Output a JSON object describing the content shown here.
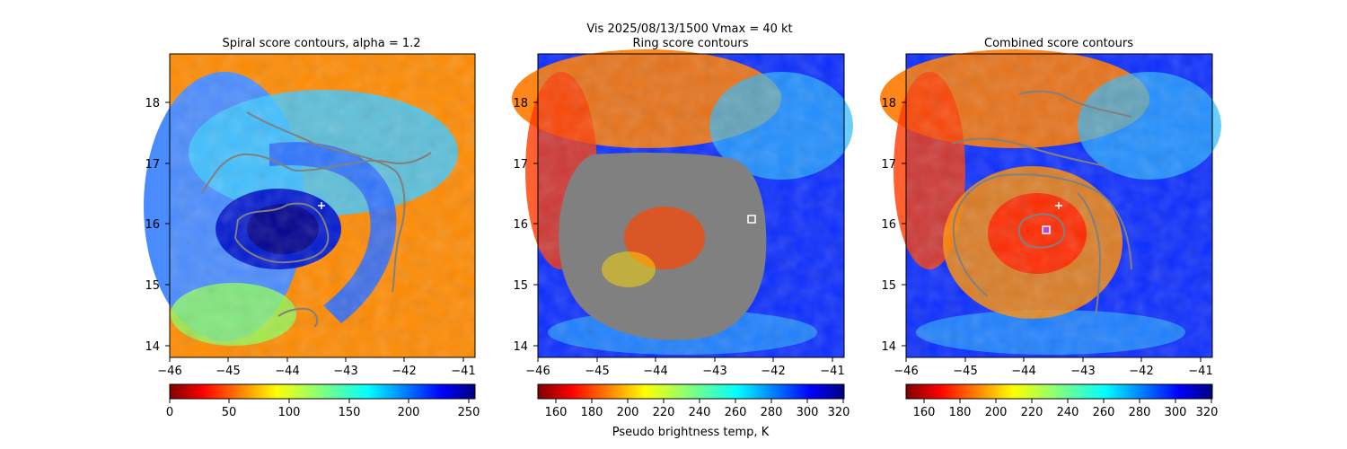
{
  "suptitle": "Vis  2025/08/13/1500    Vmax = 40 kt",
  "chart_data": [
    {
      "type": "heatmap",
      "title": "Spiral score contours, alpha =  1.2",
      "x_ticks": [
        "−46",
        "−45",
        "−44",
        "−43",
        "−42",
        "−41"
      ],
      "y_ticks": [
        "14",
        "15",
        "16",
        "17",
        "18"
      ],
      "xlim": [
        -46,
        -40.8
      ],
      "ylim": [
        13.8,
        18.8
      ],
      "colormap": "jet_r",
      "colorbar": {
        "ticks": [
          "0",
          "50",
          "100",
          "150",
          "200",
          "250"
        ],
        "range": [
          0,
          255
        ],
        "label": ""
      },
      "marker": {
        "type": "plus",
        "x": -43.4,
        "y": 16.3,
        "color": "#ffffff"
      },
      "contour_color": "#808080"
    },
    {
      "type": "heatmap",
      "title": "Ring score contours",
      "x_ticks": [
        "−46",
        "−45",
        "−44",
        "−43",
        "−42",
        "−41"
      ],
      "y_ticks": [
        "14",
        "15",
        "16",
        "17",
        "18"
      ],
      "xlim": [
        -46,
        -40.8
      ],
      "ylim": [
        13.8,
        18.8
      ],
      "colormap": "jet_r",
      "colorbar": {
        "ticks": [
          "160",
          "180",
          "200",
          "220",
          "240",
          "260",
          "280",
          "300",
          "320"
        ],
        "range": [
          150,
          320
        ],
        "label": "Pseudo brightness temp, K"
      },
      "marker": {
        "type": "square",
        "x": -42.35,
        "y": 16.08,
        "color": "#ffffff"
      },
      "mask_color": "#808080"
    },
    {
      "type": "heatmap",
      "title": "Combined score contours",
      "x_ticks": [
        "−46",
        "−45",
        "−44",
        "−43",
        "−42",
        "−41"
      ],
      "y_ticks": [
        "14",
        "15",
        "16",
        "17",
        "18"
      ],
      "xlim": [
        -46,
        -40.8
      ],
      "ylim": [
        13.8,
        18.8
      ],
      "colormap": "jet_r",
      "colorbar": {
        "ticks": [
          "160",
          "180",
          "200",
          "220",
          "240",
          "260",
          "280",
          "300",
          "320"
        ],
        "range": [
          150,
          320
        ],
        "label": ""
      },
      "marker": {
        "type": "plus",
        "x": -43.4,
        "y": 16.3,
        "color": "#ffffff"
      },
      "center_marker": {
        "type": "square",
        "x": -43.6,
        "y": 15.9,
        "color": "#cc44cc"
      },
      "contour_color": "#808080"
    }
  ]
}
